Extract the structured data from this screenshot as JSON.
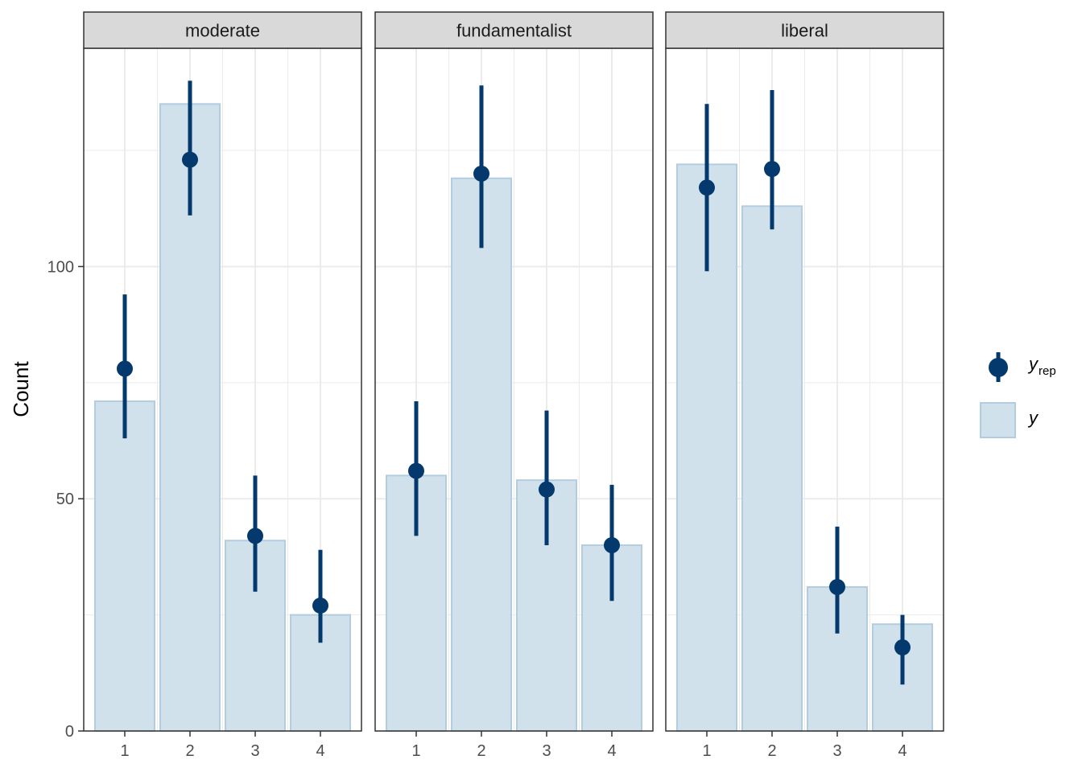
{
  "chart_data": {
    "type": "bar",
    "ylabel": "Count",
    "ylim": [
      0,
      147
    ],
    "yticks": [
      0,
      50,
      100
    ],
    "categories": [
      "1",
      "2",
      "3",
      "4"
    ],
    "legend": {
      "position": "right",
      "items": [
        {
          "key": "yrep",
          "label_main": "y",
          "label_sub": "rep"
        },
        {
          "key": "y",
          "label_main": "y"
        }
      ]
    },
    "colors": {
      "bar_fill": "#d1e1ec",
      "bar_stroke": "#b3cde0",
      "point": "#03396c",
      "strip": "#d9d9d9",
      "grid": "#ebebeb"
    },
    "panels": [
      {
        "title": "moderate",
        "y": [
          71,
          135,
          41,
          25
        ],
        "yrep": {
          "mid": [
            78,
            123,
            42,
            27
          ],
          "low": [
            63,
            111,
            30,
            19
          ],
          "high": [
            94,
            140,
            55,
            39
          ]
        }
      },
      {
        "title": "fundamentalist",
        "y": [
          55,
          119,
          54,
          40
        ],
        "yrep": {
          "mid": [
            56,
            120,
            52,
            40
          ],
          "low": [
            42,
            104,
            40,
            28
          ],
          "high": [
            71,
            139,
            69,
            53
          ]
        }
      },
      {
        "title": "liberal",
        "y": [
          122,
          113,
          31,
          23
        ],
        "yrep": {
          "mid": [
            117,
            121,
            31,
            18
          ],
          "low": [
            99,
            108,
            21,
            10
          ],
          "high": [
            135,
            138,
            44,
            25
          ]
        }
      }
    ]
  }
}
